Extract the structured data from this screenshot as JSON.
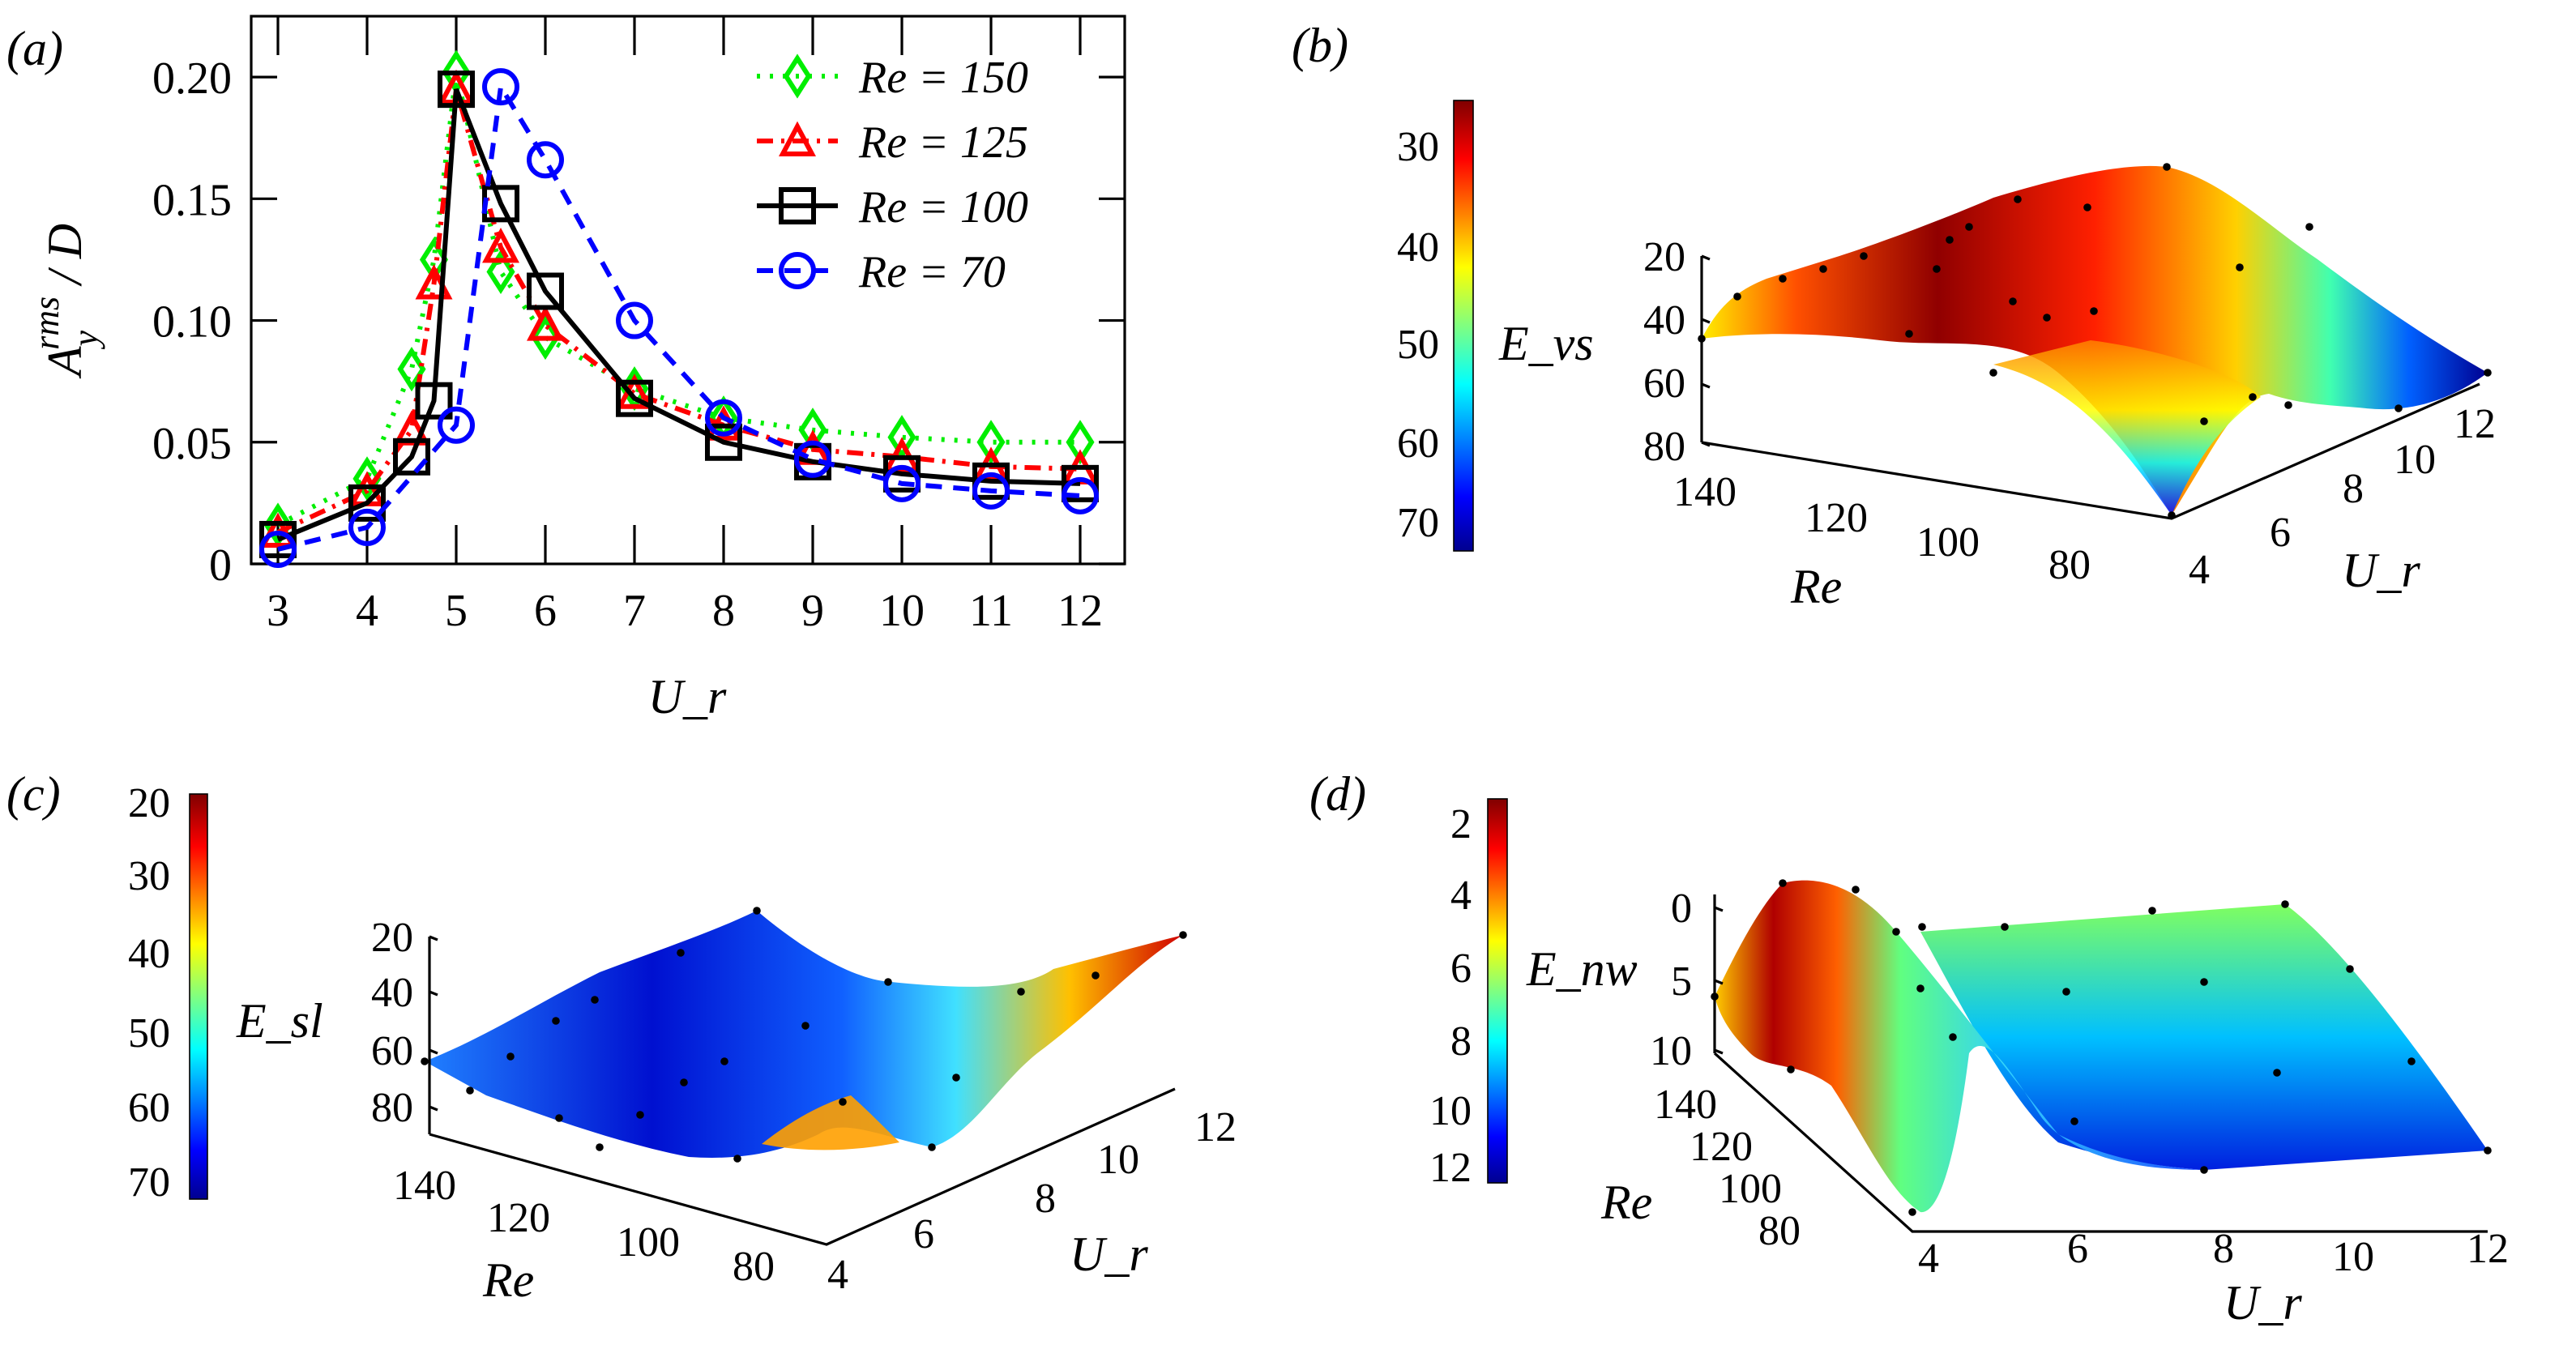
{
  "chart_data": [
    {
      "panel": "(a)",
      "type": "line",
      "xlabel": "U_r",
      "ylabel": "A_y^rms / D",
      "xlim": [
        2.7,
        12.5
      ],
      "ylim": [
        0,
        0.225
      ],
      "xticks": [
        "3",
        "4",
        "5",
        "6",
        "7",
        "8",
        "9",
        "10",
        "11",
        "12"
      ],
      "yticks": [
        "0",
        "0.05",
        "0.10",
        "0.15",
        "0.20"
      ],
      "legend_position": "top-right",
      "series": [
        {
          "name": "Re = 150",
          "color": "#00ee00",
          "marker": "diamond",
          "line": "dotted",
          "x": [
            3,
            4,
            4.5,
            4.75,
            5,
            5.5,
            6,
            7,
            8,
            9,
            10,
            11,
            12
          ],
          "y": [
            0.016,
            0.035,
            0.08,
            0.125,
            0.202,
            0.12,
            0.093,
            0.072,
            0.06,
            0.055,
            0.052,
            0.05,
            0.05
          ]
        },
        {
          "name": "Re = 125",
          "color": "#ff0000",
          "marker": "triangle",
          "line": "dash-dot",
          "x": [
            3,
            4,
            4.5,
            4.75,
            5,
            5.5,
            6,
            7,
            8,
            9,
            10,
            11,
            12
          ],
          "y": [
            0.013,
            0.03,
            0.055,
            0.115,
            0.195,
            0.13,
            0.098,
            0.07,
            0.057,
            0.047,
            0.044,
            0.04,
            0.039
          ]
        },
        {
          "name": "Re = 100",
          "color": "#000000",
          "marker": "square",
          "line": "solid",
          "x": [
            3,
            4,
            4.5,
            4.75,
            5,
            5.5,
            6,
            7,
            8,
            9,
            10,
            11,
            12
          ],
          "y": [
            0.01,
            0.025,
            0.044,
            0.067,
            0.195,
            0.148,
            0.112,
            0.068,
            0.05,
            0.042,
            0.037,
            0.034,
            0.033
          ]
        },
        {
          "name": "Re = 70",
          "color": "#0000ff",
          "marker": "circle",
          "line": "dashed",
          "x": [
            3,
            4,
            5,
            5.5,
            6,
            7,
            8,
            9,
            10,
            11,
            12
          ],
          "y": [
            0.006,
            0.015,
            0.057,
            0.196,
            0.166,
            0.1,
            0.06,
            0.043,
            0.033,
            0.03,
            0.028
          ]
        }
      ]
    },
    {
      "panel": "(b)",
      "type": "surface",
      "colormap": "jet",
      "colorbar_label": "E_vs",
      "colorbar_ticks": [
        "30",
        "40",
        "50",
        "60",
        "70"
      ],
      "zticks": [
        "20",
        "40",
        "60",
        "80"
      ],
      "re_ticks": [
        "140",
        "120",
        "100",
        "80"
      ],
      "ur_ticks": [
        "4",
        "6",
        "8",
        "10",
        "12"
      ],
      "re_label": "Re",
      "ur_label": "U_r"
    },
    {
      "panel": "(c)",
      "type": "surface",
      "colormap": "jet",
      "colorbar_label": "E_sl",
      "colorbar_ticks": [
        "20",
        "30",
        "40",
        "50",
        "60",
        "70"
      ],
      "zticks": [
        "20",
        "40",
        "60",
        "80"
      ],
      "re_ticks": [
        "140",
        "120",
        "100",
        "80"
      ],
      "ur_ticks": [
        "4",
        "6",
        "8",
        "10",
        "12"
      ],
      "re_label": "Re",
      "ur_label": "U_r"
    },
    {
      "panel": "(d)",
      "type": "surface",
      "colormap": "jet",
      "colorbar_label": "E_nw",
      "colorbar_ticks": [
        "2",
        "4",
        "6",
        "8",
        "10",
        "12"
      ],
      "zticks": [
        "0",
        "5",
        "10"
      ],
      "re_ticks": [
        "140",
        "120",
        "100",
        "80"
      ],
      "ur_ticks": [
        "4",
        "6",
        "8",
        "10",
        "12"
      ],
      "re_label": "Re",
      "ur_label": "U_r"
    }
  ]
}
